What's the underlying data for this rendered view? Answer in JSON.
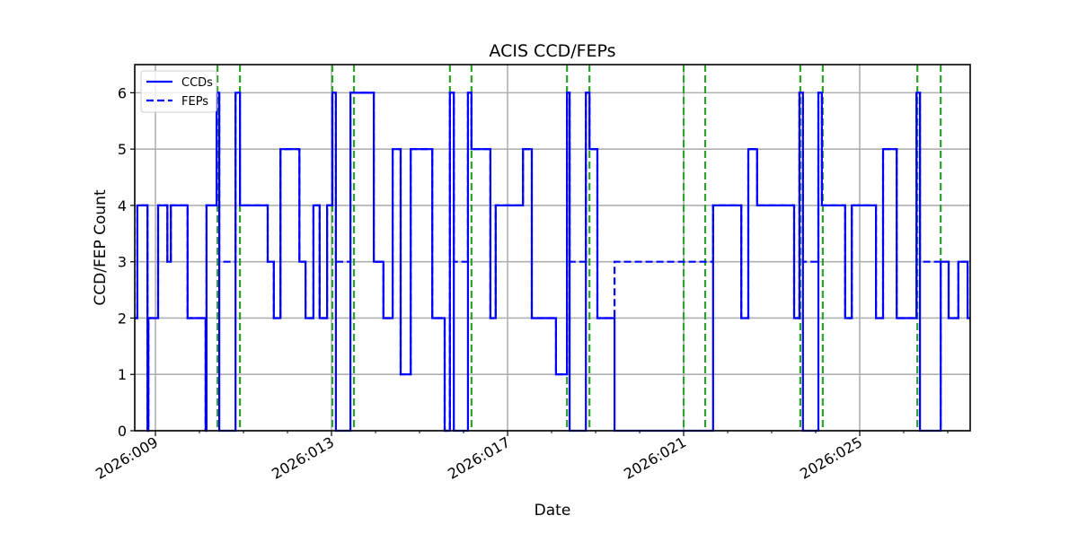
{
  "chart_data": {
    "type": "line",
    "subtype": "step",
    "title": "ACIS CCD/FEPs",
    "xlabel": "Date",
    "ylabel": "CCD/FEP Count",
    "x_unit": "day-of-year 2026",
    "xlim": [
      8.53,
      27.51
    ],
    "ylim": [
      0,
      6.5
    ],
    "grid": true,
    "legend_position": "upper left",
    "x_major_ticks": [
      {
        "value": 9,
        "label": "2026:009"
      },
      {
        "value": 13,
        "label": "2026:013"
      },
      {
        "value": 17,
        "label": "2026:017"
      },
      {
        "value": 21,
        "label": "2026:021"
      },
      {
        "value": 25,
        "label": "2026:025"
      }
    ],
    "x_minor_ticks": [
      10,
      11,
      12,
      14,
      15,
      16,
      18,
      19,
      20,
      22,
      23,
      24,
      26,
      27
    ],
    "y_ticks": [
      0,
      1,
      2,
      3,
      4,
      5,
      6
    ],
    "series": [
      {
        "name": "CCDs",
        "style": "solid",
        "color": "#0000ff",
        "points": [
          [
            8.53,
            2
          ],
          [
            8.59,
            2
          ],
          [
            8.59,
            4
          ],
          [
            8.82,
            4
          ],
          [
            8.82,
            0
          ],
          [
            8.84,
            0
          ],
          [
            8.84,
            2
          ],
          [
            9.06,
            2
          ],
          [
            9.06,
            4
          ],
          [
            9.27,
            4
          ],
          [
            9.27,
            3
          ],
          [
            9.35,
            3
          ],
          [
            9.35,
            4
          ],
          [
            9.73,
            4
          ],
          [
            9.73,
            2
          ],
          [
            10.14,
            2
          ],
          [
            10.14,
            0
          ],
          [
            10.16,
            0
          ],
          [
            10.16,
            4
          ],
          [
            10.39,
            4
          ],
          [
            10.39,
            6
          ],
          [
            10.45,
            6
          ],
          [
            10.45,
            0
          ],
          [
            10.82,
            0
          ],
          [
            10.82,
            6
          ],
          [
            10.92,
            6
          ],
          [
            10.92,
            4
          ],
          [
            11.55,
            4
          ],
          [
            11.55,
            3
          ],
          [
            11.69,
            3
          ],
          [
            11.69,
            2
          ],
          [
            11.84,
            2
          ],
          [
            11.84,
            5
          ],
          [
            12.27,
            5
          ],
          [
            12.27,
            3
          ],
          [
            12.41,
            3
          ],
          [
            12.41,
            2
          ],
          [
            12.59,
            2
          ],
          [
            12.59,
            4
          ],
          [
            12.73,
            4
          ],
          [
            12.73,
            2
          ],
          [
            12.9,
            2
          ],
          [
            12.9,
            4
          ],
          [
            13.02,
            4
          ],
          [
            13.02,
            6
          ],
          [
            13.1,
            6
          ],
          [
            13.1,
            0
          ],
          [
            13.43,
            0
          ],
          [
            13.43,
            6
          ],
          [
            13.96,
            6
          ],
          [
            13.96,
            3
          ],
          [
            14.18,
            3
          ],
          [
            14.18,
            2
          ],
          [
            14.39,
            2
          ],
          [
            14.39,
            5
          ],
          [
            14.57,
            5
          ],
          [
            14.57,
            1
          ],
          [
            14.8,
            1
          ],
          [
            14.8,
            5
          ],
          [
            15.29,
            5
          ],
          [
            15.29,
            2
          ],
          [
            15.57,
            2
          ],
          [
            15.57,
            0
          ],
          [
            15.69,
            0
          ],
          [
            15.69,
            6
          ],
          [
            15.78,
            6
          ],
          [
            15.78,
            0
          ],
          [
            16.1,
            0
          ],
          [
            16.1,
            6
          ],
          [
            16.18,
            6
          ],
          [
            16.18,
            5
          ],
          [
            16.61,
            5
          ],
          [
            16.61,
            2
          ],
          [
            16.73,
            2
          ],
          [
            16.73,
            4
          ],
          [
            17.35,
            4
          ],
          [
            17.35,
            5
          ],
          [
            17.55,
            5
          ],
          [
            17.55,
            2
          ],
          [
            18.1,
            2
          ],
          [
            18.1,
            1
          ],
          [
            18.35,
            1
          ],
          [
            18.35,
            6
          ],
          [
            18.41,
            6
          ],
          [
            18.41,
            0
          ],
          [
            18.78,
            0
          ],
          [
            18.78,
            6
          ],
          [
            18.86,
            6
          ],
          [
            18.86,
            5
          ],
          [
            19.04,
            5
          ],
          [
            19.04,
            2
          ],
          [
            19.43,
            2
          ],
          [
            19.43,
            0
          ],
          [
            21.67,
            0
          ],
          [
            21.67,
            4
          ],
          [
            22.31,
            4
          ],
          [
            22.31,
            2
          ],
          [
            22.47,
            2
          ],
          [
            22.47,
            5
          ],
          [
            22.67,
            5
          ],
          [
            22.67,
            4
          ],
          [
            23.51,
            4
          ],
          [
            23.51,
            2
          ],
          [
            23.63,
            2
          ],
          [
            23.63,
            6
          ],
          [
            23.71,
            6
          ],
          [
            23.71,
            0
          ],
          [
            24.06,
            0
          ],
          [
            24.06,
            6
          ],
          [
            24.14,
            6
          ],
          [
            24.14,
            4
          ],
          [
            24.67,
            4
          ],
          [
            24.67,
            2
          ],
          [
            24.82,
            2
          ],
          [
            24.82,
            4
          ],
          [
            25.37,
            4
          ],
          [
            25.37,
            2
          ],
          [
            25.53,
            2
          ],
          [
            25.53,
            5
          ],
          [
            25.84,
            5
          ],
          [
            25.84,
            2
          ],
          [
            26.29,
            2
          ],
          [
            26.29,
            6
          ],
          [
            26.37,
            6
          ],
          [
            26.37,
            0
          ],
          [
            26.84,
            0
          ],
          [
            26.84,
            3
          ],
          [
            27.02,
            3
          ],
          [
            27.02,
            2
          ],
          [
            27.24,
            2
          ],
          [
            27.24,
            3
          ],
          [
            27.45,
            3
          ],
          [
            27.45,
            2
          ],
          [
            27.51,
            2
          ]
        ]
      },
      {
        "name": "FEPs",
        "style": "dashed",
        "color": "#0000ff",
        "points": [
          [
            8.53,
            2
          ],
          [
            8.59,
            2
          ],
          [
            8.59,
            4
          ],
          [
            8.82,
            4
          ],
          [
            8.82,
            0
          ],
          [
            8.84,
            0
          ],
          [
            8.84,
            2
          ],
          [
            9.06,
            2
          ],
          [
            9.06,
            4
          ],
          [
            9.27,
            4
          ],
          [
            9.27,
            3
          ],
          [
            9.35,
            3
          ],
          [
            9.35,
            4
          ],
          [
            9.73,
            4
          ],
          [
            9.73,
            2
          ],
          [
            10.14,
            2
          ],
          [
            10.14,
            0
          ],
          [
            10.16,
            0
          ],
          [
            10.16,
            4
          ],
          [
            10.39,
            4
          ],
          [
            10.39,
            6
          ],
          [
            10.45,
            6
          ],
          [
            10.45,
            3
          ],
          [
            10.82,
            3
          ],
          [
            10.82,
            6
          ],
          [
            10.92,
            6
          ],
          [
            10.92,
            4
          ],
          [
            11.55,
            4
          ],
          [
            11.55,
            3
          ],
          [
            11.69,
            3
          ],
          [
            11.69,
            2
          ],
          [
            11.84,
            2
          ],
          [
            11.84,
            5
          ],
          [
            12.27,
            5
          ],
          [
            12.27,
            3
          ],
          [
            12.41,
            3
          ],
          [
            12.41,
            2
          ],
          [
            12.59,
            2
          ],
          [
            12.59,
            4
          ],
          [
            12.73,
            4
          ],
          [
            12.73,
            2
          ],
          [
            12.9,
            2
          ],
          [
            12.9,
            4
          ],
          [
            13.02,
            4
          ],
          [
            13.02,
            6
          ],
          [
            13.1,
            6
          ],
          [
            13.1,
            3
          ],
          [
            13.43,
            3
          ],
          [
            13.43,
            6
          ],
          [
            13.96,
            6
          ],
          [
            13.96,
            3
          ],
          [
            14.18,
            3
          ],
          [
            14.18,
            2
          ],
          [
            14.39,
            2
          ],
          [
            14.39,
            5
          ],
          [
            14.57,
            5
          ],
          [
            14.57,
            1
          ],
          [
            14.8,
            1
          ],
          [
            14.8,
            5
          ],
          [
            15.29,
            5
          ],
          [
            15.29,
            2
          ],
          [
            15.57,
            2
          ],
          [
            15.57,
            0
          ],
          [
            15.69,
            0
          ],
          [
            15.69,
            6
          ],
          [
            15.78,
            6
          ],
          [
            15.78,
            3
          ],
          [
            16.1,
            3
          ],
          [
            16.1,
            6
          ],
          [
            16.18,
            6
          ],
          [
            16.18,
            5
          ],
          [
            16.61,
            5
          ],
          [
            16.61,
            2
          ],
          [
            16.73,
            2
          ],
          [
            16.73,
            4
          ],
          [
            17.35,
            4
          ],
          [
            17.35,
            5
          ],
          [
            17.55,
            5
          ],
          [
            17.55,
            2
          ],
          [
            18.1,
            2
          ],
          [
            18.1,
            1
          ],
          [
            18.35,
            1
          ],
          [
            18.35,
            6
          ],
          [
            18.41,
            6
          ],
          [
            18.41,
            3
          ],
          [
            18.78,
            3
          ],
          [
            18.78,
            6
          ],
          [
            18.86,
            6
          ],
          [
            18.86,
            5
          ],
          [
            19.04,
            5
          ],
          [
            19.04,
            2
          ],
          [
            19.43,
            2
          ],
          [
            19.43,
            3
          ],
          [
            21.67,
            3
          ],
          [
            21.67,
            4
          ],
          [
            22.31,
            4
          ],
          [
            22.31,
            2
          ],
          [
            22.47,
            2
          ],
          [
            22.47,
            5
          ],
          [
            22.67,
            5
          ],
          [
            22.67,
            4
          ],
          [
            23.51,
            4
          ],
          [
            23.51,
            2
          ],
          [
            23.63,
            2
          ],
          [
            23.63,
            6
          ],
          [
            23.71,
            6
          ],
          [
            23.71,
            3
          ],
          [
            24.06,
            3
          ],
          [
            24.06,
            6
          ],
          [
            24.14,
            6
          ],
          [
            24.14,
            4
          ],
          [
            24.67,
            4
          ],
          [
            24.67,
            2
          ],
          [
            24.82,
            2
          ],
          [
            24.82,
            4
          ],
          [
            25.37,
            4
          ],
          [
            25.37,
            2
          ],
          [
            25.53,
            2
          ],
          [
            25.53,
            5
          ],
          [
            25.84,
            5
          ],
          [
            25.84,
            2
          ],
          [
            26.29,
            2
          ],
          [
            26.29,
            6
          ],
          [
            26.37,
            6
          ],
          [
            26.37,
            3
          ],
          [
            26.84,
            3
          ],
          [
            27.02,
            3
          ],
          [
            27.02,
            2
          ],
          [
            27.24,
            2
          ],
          [
            27.24,
            3
          ],
          [
            27.45,
            3
          ],
          [
            27.45,
            2
          ],
          [
            27.51,
            2
          ]
        ]
      }
    ],
    "vertical_markers": {
      "style": "dashed",
      "color": "#2ca02c",
      "x": [
        10.41,
        10.92,
        13.02,
        13.51,
        15.69,
        16.18,
        18.35,
        18.86,
        21.0,
        21.49,
        23.65,
        24.16,
        26.31,
        26.84
      ]
    },
    "colors": {
      "series": "#0000ff",
      "markers": "#2ca02c",
      "grid": "#b0b0b0",
      "axes": "#000000"
    }
  }
}
